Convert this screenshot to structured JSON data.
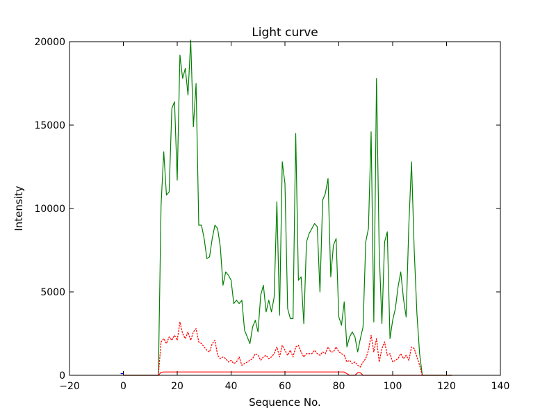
{
  "chart_data": {
    "type": "line",
    "title": "Light curve",
    "xlabel": "Sequence No.",
    "ylabel": "Intensity",
    "xlim": [
      -20,
      140
    ],
    "ylim": [
      0,
      20000
    ],
    "x_ticks": [
      -20,
      0,
      20,
      40,
      60,
      80,
      100,
      120,
      140
    ],
    "y_ticks": [
      0,
      5000,
      10000,
      15000,
      20000
    ],
    "x_tick_labels": [
      "−20",
      "0",
      "20",
      "40",
      "60",
      "80",
      "100",
      "120",
      "140"
    ],
    "y_tick_labels": [
      "0",
      "5000",
      "10000",
      "15000",
      "20000"
    ],
    "grid": false,
    "series": [
      {
        "color": "#008000",
        "style": "solid",
        "x": [
          0,
          13,
          14,
          15,
          16,
          17,
          18,
          19,
          20,
          21,
          22,
          23,
          24,
          25,
          26,
          27,
          28,
          29,
          30,
          31,
          32,
          33,
          34,
          35,
          36,
          37,
          38,
          39,
          40,
          41,
          42,
          43,
          44,
          45,
          46,
          47,
          48,
          49,
          50,
          51,
          52,
          53,
          54,
          55,
          56,
          57,
          58,
          59,
          60,
          61,
          62,
          63,
          64,
          65,
          66,
          67,
          68,
          69,
          70,
          71,
          72,
          73,
          74,
          75,
          76,
          77,
          78,
          79,
          80,
          81,
          82,
          83,
          84,
          85,
          86,
          87,
          88,
          89,
          90,
          91,
          92,
          93,
          94,
          95,
          96,
          97,
          98,
          99,
          100,
          101,
          102,
          103,
          104,
          105,
          106,
          107,
          108,
          109,
          110,
          111,
          122
        ],
        "values": [
          0,
          0,
          10200,
          13400,
          10800,
          11000,
          16000,
          16400,
          11700,
          19200,
          17800,
          18400,
          16800,
          20100,
          14900,
          17500,
          9000,
          9000,
          8200,
          7000,
          7100,
          8200,
          9000,
          8800,
          7700,
          5400,
          6200,
          6000,
          5700,
          4300,
          4500,
          4300,
          4500,
          2700,
          2300,
          1900,
          2900,
          3300,
          2600,
          4800,
          5400,
          3800,
          4500,
          3800,
          4700,
          10400,
          3600,
          12800,
          11500,
          4000,
          3400,
          3400,
          14500,
          5700,
          5900,
          3100,
          8000,
          8500,
          8800,
          9100,
          8900,
          5000,
          10500,
          10900,
          11800,
          5900,
          7800,
          8200,
          3500,
          3000,
          4400,
          1700,
          2300,
          2600,
          2300,
          1400,
          2200,
          2900,
          8000,
          8800,
          14600,
          3200,
          17800,
          7400,
          3100,
          8000,
          8600,
          2200,
          3300,
          4000,
          5300,
          6200,
          4600,
          3500,
          9000,
          12800,
          7500,
          3700,
          1300,
          0,
          0
        ]
      },
      {
        "color": "#ff0000",
        "style": "dotted",
        "x": [
          13,
          14,
          15,
          16,
          17,
          18,
          19,
          20,
          21,
          22,
          23,
          24,
          25,
          26,
          27,
          28,
          29,
          30,
          31,
          32,
          33,
          34,
          35,
          36,
          37,
          38,
          39,
          40,
          41,
          42,
          43,
          44,
          45,
          46,
          47,
          48,
          49,
          50,
          51,
          52,
          53,
          54,
          55,
          56,
          57,
          58,
          59,
          60,
          61,
          62,
          63,
          64,
          65,
          66,
          67,
          68,
          69,
          70,
          71,
          72,
          73,
          74,
          75,
          76,
          77,
          78,
          79,
          80,
          81,
          82,
          83,
          84,
          85,
          86,
          87,
          88,
          89,
          90,
          91,
          92,
          93,
          94,
          95,
          96,
          97,
          98,
          99,
          100,
          101,
          102,
          103,
          104,
          105,
          106,
          107,
          108,
          109,
          110,
          111
        ],
        "values": [
          0,
          2000,
          2200,
          1900,
          2300,
          2100,
          2400,
          2100,
          3200,
          2500,
          2200,
          2600,
          2100,
          2600,
          2800,
          2000,
          1900,
          1700,
          1500,
          1400,
          1900,
          2100,
          1200,
          1000,
          1100,
          1000,
          800,
          900,
          700,
          800,
          1100,
          600,
          700,
          800,
          900,
          1000,
          1300,
          1200,
          900,
          1100,
          1200,
          1000,
          1100,
          1300,
          1700,
          1100,
          1800,
          1500,
          1200,
          1500,
          1100,
          1700,
          1800,
          1400,
          1100,
          1300,
          1300,
          1300,
          1500,
          1300,
          1200,
          1400,
          1300,
          1700,
          1400,
          1400,
          1700,
          1400,
          1300,
          1200,
          800,
          900,
          700,
          800,
          600,
          500,
          800,
          1000,
          1500,
          2400,
          1400,
          2200,
          800,
          1600,
          2000,
          1200,
          1300,
          800,
          900,
          1000,
          1300,
          1000,
          1200,
          900,
          1700,
          1600,
          1100,
          600,
          0
        ]
      },
      {
        "color": "#ff0000",
        "style": "solid",
        "x": [
          0,
          13,
          14,
          15,
          16,
          80,
          81,
          82,
          83,
          84,
          85,
          86,
          87,
          88,
          89,
          90,
          122
        ],
        "values": [
          0,
          0,
          180,
          200,
          200,
          200,
          200,
          200,
          100,
          0,
          0,
          0,
          150,
          150,
          0,
          0,
          0
        ]
      },
      {
        "color": "#0000ff",
        "style": "solid",
        "x": [
          -1,
          0
        ],
        "values": [
          100,
          100
        ]
      }
    ]
  }
}
